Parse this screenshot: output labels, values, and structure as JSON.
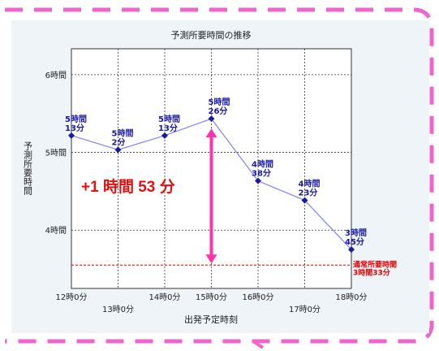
{
  "chart_data": {
    "type": "line",
    "title": "予測所要時間の推移",
    "xlabel": "出発予定時刻",
    "ylabel": "予測所要時間",
    "x_ticks_upper": [
      "12時0分",
      "14時0分",
      "15時0分",
      "16時0分",
      "18時0分"
    ],
    "x_ticks_lower": [
      "13時0分",
      "17時0分"
    ],
    "y_ticks": [
      "6時間",
      "5時間",
      "4時間"
    ],
    "ylim_minutes": [
      195,
      380
    ],
    "series": [
      {
        "x": [
          "12時0分",
          "13時0分",
          "14時0分",
          "15時0分",
          "16時0分",
          "17時0分",
          "18時0分"
        ],
        "values_minutes": [
          313,
          302,
          313,
          326,
          278,
          263,
          225
        ],
        "labels": [
          [
            "5時間",
            "13分"
          ],
          [
            "5時間",
            "2分"
          ],
          [
            "5時間",
            "13分"
          ],
          [
            "5時間",
            "26分"
          ],
          [
            "4時間",
            "38分"
          ],
          [
            "4時間",
            "23分"
          ],
          [
            "3時間",
            "45分"
          ]
        ]
      }
    ],
    "reference_line": {
      "value_minutes": 213,
      "label": [
        "通常所要時間",
        "3時間33分"
      ],
      "color": "#e00000"
    },
    "annotation": {
      "text": "+1 時間 53 分",
      "from_minutes": 213,
      "to_minutes": 326,
      "at_x": "15時0分",
      "color": "#ff33aa"
    },
    "grid": true,
    "colors": {
      "line": "#8080ff",
      "marker": "#1a1aa0",
      "label": "#1a1aa0",
      "frame": "#ee66cc",
      "panel_background": "#eef4f8"
    }
  }
}
